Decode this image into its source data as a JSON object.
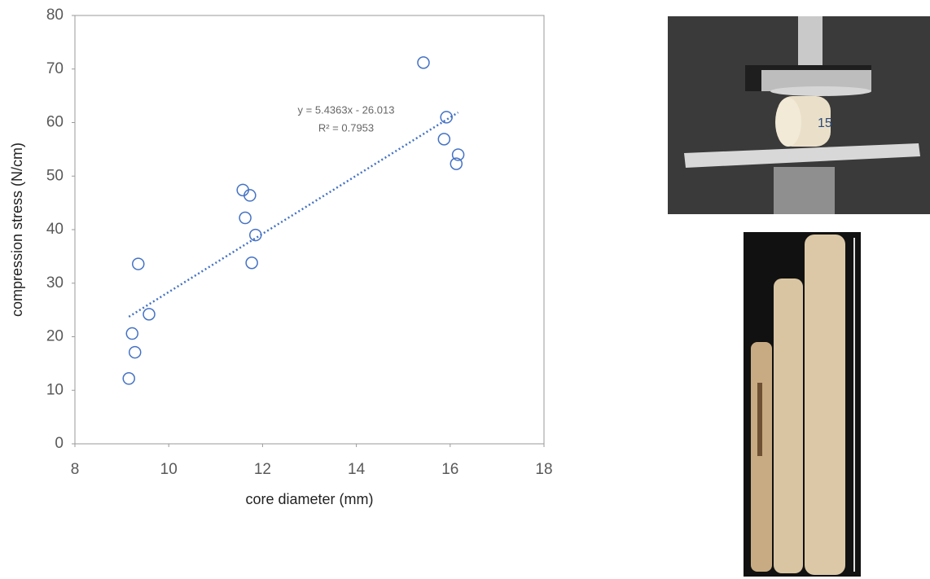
{
  "chart_data": {
    "type": "scatter",
    "x_label": "core diameter (mm)",
    "y_label": "compression stress (N/cm)",
    "x": [
      9.15,
      9.22,
      9.28,
      9.35,
      9.58,
      11.58,
      11.63,
      11.73,
      11.77,
      11.85,
      15.43,
      15.87,
      15.92,
      16.13,
      16.17
    ],
    "series": [
      {
        "color": "#4472c4",
        "values": [
          12.2,
          20.6,
          17.1,
          33.6,
          24.2,
          47.4,
          42.2,
          46.4,
          33.8,
          39.0,
          71.2,
          56.9,
          61.0,
          52.3,
          54.0
        ]
      }
    ],
    "trendline": {
      "slope": 5.4363,
      "intercept": -26.013,
      "color": "#4472c4",
      "equation_label": "y = 5.4363x - 26.013",
      "r2_label": "R² = 0.7953"
    },
    "xlim": [
      8,
      18
    ],
    "xticks": [
      8,
      10,
      12,
      14,
      16,
      18
    ],
    "ylim": [
      0,
      80
    ],
    "yticks": [
      0,
      10,
      20,
      30,
      40,
      50,
      60,
      70,
      80
    ],
    "grid": false
  },
  "photos": {
    "specimen_label": "15"
  }
}
